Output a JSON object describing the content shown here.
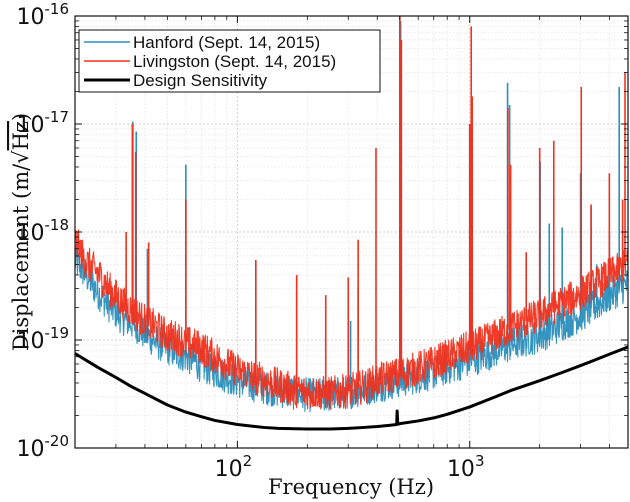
{
  "chart_data": {
    "type": "line",
    "title": "",
    "xlabel": "Frequency (Hz)",
    "ylabel": "Displacement (m/√Hz)",
    "ylabel_parts": {
      "main": "Displacement ",
      "open": "(m/",
      "sqrt": "Hz",
      "close": ")"
    },
    "x_scale": "log",
    "y_scale": "log",
    "xlim": [
      20,
      4800
    ],
    "ylim": [
      1e-20,
      1e-16
    ],
    "grid": true,
    "legend_position": "top-left",
    "x_ticks": [
      {
        "value": 100,
        "base": "10",
        "exp": "2"
      },
      {
        "value": 1000,
        "base": "10",
        "exp": "3"
      }
    ],
    "y_ticks": [
      {
        "value": 1e-20,
        "base": "10",
        "exp": "-20"
      },
      {
        "value": 1e-19,
        "base": "10",
        "exp": "-19"
      },
      {
        "value": 1e-18,
        "base": "10",
        "exp": "-18"
      },
      {
        "value": 1e-17,
        "base": "10",
        "exp": "-17"
      },
      {
        "value": 1e-16,
        "base": "10",
        "exp": "-16"
      }
    ],
    "series": [
      {
        "name": "Hanford (Sept. 14, 2015)",
        "color": "#2a8fbd",
        "stroke_width": 1.1,
        "x": [
          20,
          22,
          25,
          28,
          32,
          36,
          40,
          45,
          50,
          55,
          60,
          70,
          80,
          90,
          100,
          120,
          150,
          180,
          200,
          250,
          300,
          350,
          400,
          450,
          500,
          600,
          700,
          800,
          1000,
          1200,
          1500,
          2000,
          2500,
          3000,
          3500,
          4000,
          4800
        ],
        "y": [
          5.5e-19,
          4.2e-19,
          2.8e-19,
          2.1e-19,
          1.6e-19,
          1.4e-19,
          1.15e-19,
          9.5e-20,
          8.5e-20,
          7.5e-20,
          7.2e-20,
          5.8e-20,
          5.2e-20,
          4.6e-20,
          4.2e-20,
          3.8e-20,
          3.4e-20,
          3.2e-20,
          3.1e-20,
          3.1e-20,
          3.3e-20,
          3.5e-20,
          3.8e-20,
          4e-20,
          4.2e-20,
          4.6e-20,
          5e-20,
          5.5e-20,
          6.5e-20,
          7.5e-20,
          9e-20,
          1.1e-19,
          1.4e-19,
          1.7e-19,
          2.1e-19,
          2.6e-19,
          3.3e-19
        ],
        "peaks": [
          {
            "x": 35.5,
            "y": 1.05e-17
          },
          {
            "x": 36.7,
            "y": 8.5e-18
          },
          {
            "x": 41,
            "y": 7e-19
          },
          {
            "x": 60,
            "y": 4.2e-18
          },
          {
            "x": 120,
            "y": 5e-19
          },
          {
            "x": 180,
            "y": 3.2e-19
          },
          {
            "x": 307,
            "y": 1.5e-19
          },
          {
            "x": 331,
            "y": 3e-19
          },
          {
            "x": 504,
            "y": 9e-17
          },
          {
            "x": 1000,
            "y": 1e-17
          },
          {
            "x": 1008,
            "y": 8e-18
          },
          {
            "x": 1455,
            "y": 2.4e-17
          },
          {
            "x": 1485,
            "y": 1.5e-17
          },
          {
            "x": 2010,
            "y": 4.5e-18
          },
          {
            "x": 2200,
            "y": 1.2e-18
          },
          {
            "x": 2500,
            "y": 1.1e-18
          },
          {
            "x": 3000,
            "y": 3.5e-18
          },
          {
            "x": 3330,
            "y": 1.7e-18
          },
          {
            "x": 3520,
            "y": 5e-19
          },
          {
            "x": 3990,
            "y": 1e-18
          },
          {
            "x": 4400,
            "y": 2.2e-17
          }
        ]
      },
      {
        "name": "Livingston (Sept. 14, 2015)",
        "color": "#f0321e",
        "stroke_width": 1.1,
        "x": [
          20,
          22,
          25,
          28,
          32,
          36,
          40,
          45,
          50,
          55,
          60,
          70,
          80,
          90,
          100,
          120,
          150,
          180,
          200,
          250,
          300,
          350,
          400,
          450,
          500,
          600,
          700,
          800,
          1000,
          1200,
          1500,
          2000,
          2500,
          3000,
          3500,
          4000,
          4800
        ],
        "y": [
          8.5e-19,
          5.5e-19,
          4.2e-19,
          3e-19,
          2.2e-19,
          1.8e-19,
          1.5e-19,
          1.3e-19,
          1.1e-19,
          1.05e-19,
          9.5e-20,
          8.5e-20,
          7e-20,
          6e-20,
          5.3e-20,
          4.5e-20,
          3.8e-20,
          3.4e-20,
          3.3e-20,
          3.2e-20,
          3.4e-20,
          3.7e-20,
          4.2e-20,
          4.6e-20,
          4.8e-20,
          5.5e-20,
          6.2e-20,
          7e-20,
          8.5e-20,
          1e-19,
          1.3e-19,
          1.7e-19,
          2.2e-19,
          2.7e-19,
          3.3e-19,
          4e-19,
          5e-19
        ],
        "peaks": [
          {
            "x": 33.2,
            "y": 1e-18
          },
          {
            "x": 35.3,
            "y": 1e-17
          },
          {
            "x": 36.5,
            "y": 5.5e-18
          },
          {
            "x": 41.5,
            "y": 8e-19
          },
          {
            "x": 60,
            "y": 2e-18
          },
          {
            "x": 120,
            "y": 5.5e-19
          },
          {
            "x": 180,
            "y": 4e-19
          },
          {
            "x": 240,
            "y": 2.6e-19
          },
          {
            "x": 300,
            "y": 3.8e-19
          },
          {
            "x": 331,
            "y": 8.5e-19
          },
          {
            "x": 395,
            "y": 6e-18
          },
          {
            "x": 500,
            "y": 1e-16
          },
          {
            "x": 508,
            "y": 6e-17
          },
          {
            "x": 1000,
            "y": 1e-17
          },
          {
            "x": 1015,
            "y": 8e-17
          },
          {
            "x": 1025,
            "y": 1.8e-17
          },
          {
            "x": 1460,
            "y": 1.4e-17
          },
          {
            "x": 1500,
            "y": 4.2e-18
          },
          {
            "x": 1750,
            "y": 6.5e-19
          },
          {
            "x": 2000,
            "y": 6e-18
          },
          {
            "x": 2300,
            "y": 7e-18
          },
          {
            "x": 3020,
            "y": 2.2e-17
          },
          {
            "x": 3330,
            "y": 1.8e-18
          },
          {
            "x": 3990,
            "y": 3.5e-18
          },
          {
            "x": 4550,
            "y": 2e-18
          },
          {
            "x": 4660,
            "y": 3e-17
          }
        ]
      },
      {
        "name": "Design Sensitivity",
        "color": "#000000",
        "stroke_width": 3,
        "x": [
          20,
          25,
          30,
          35,
          40,
          50,
          60,
          70,
          80,
          100,
          130,
          150,
          200,
          250,
          300,
          350,
          400,
          450,
          485,
          487,
          490,
          500,
          600,
          700,
          800,
          1000,
          1300,
          1500,
          2000,
          2500,
          3000,
          3500,
          4000,
          4800
        ],
        "y": [
          7.5e-20,
          5.6e-20,
          4.5e-20,
          3.7e-20,
          3.2e-20,
          2.5e-20,
          2.15e-20,
          1.95e-20,
          1.8e-20,
          1.65e-20,
          1.55e-20,
          1.52e-20,
          1.5e-20,
          1.5e-20,
          1.52e-20,
          1.55e-20,
          1.58e-20,
          1.62e-20,
          1.65e-20,
          2.2e-20,
          1.66e-20,
          1.68e-20,
          1.78e-20,
          1.9e-20,
          2.05e-20,
          2.4e-20,
          3e-20,
          3.4e-20,
          4.2e-20,
          5e-20,
          5.8e-20,
          6.6e-20,
          7.4e-20,
          8.6e-20
        ]
      }
    ]
  }
}
